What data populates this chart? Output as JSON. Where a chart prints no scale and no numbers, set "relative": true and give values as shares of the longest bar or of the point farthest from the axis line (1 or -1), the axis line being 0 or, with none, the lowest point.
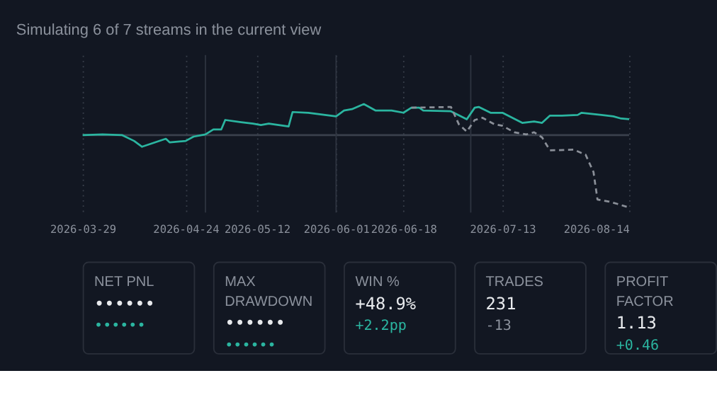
{
  "chart_data": [
    {
      "type": "line",
      "title": "Simulating 6 of 7 streams in the current view",
      "relative": true,
      "x": [
        "2026-03-29",
        "2026-04-03",
        "2026-04-08",
        "2026-04-11",
        "2026-04-13",
        "2026-04-19",
        "2026-04-20",
        "2026-04-24",
        "2026-04-26",
        "2026-04-29",
        "2026-05-01",
        "2026-05-03",
        "2026-05-04",
        "2026-05-08",
        "2026-05-11",
        "2026-05-13",
        "2026-05-15",
        "2026-05-20",
        "2026-05-21",
        "2026-05-25",
        "2026-06-01",
        "2026-06-03",
        "2026-06-05",
        "2026-06-08",
        "2026-06-11",
        "2026-06-15",
        "2026-06-18",
        "2026-06-20",
        "2026-06-22",
        "2026-06-23",
        "2026-06-30",
        "2026-07-04",
        "2026-07-06",
        "2026-07-07",
        "2026-07-10",
        "2026-07-13",
        "2026-07-18",
        "2026-07-21",
        "2026-07-23",
        "2026-07-25",
        "2026-07-28",
        "2026-08-01",
        "2026-08-02",
        "2026-08-07",
        "2026-08-10",
        "2026-08-12",
        "2026-08-14"
      ],
      "series": [
        {
          "color": "#2bb5a0",
          "line_style": "solid",
          "values": [
            0,
            0.01,
            0,
            -0.08,
            -0.16,
            -0.05,
            -0.1,
            -0.08,
            -0.02,
            0.01,
            0.08,
            0.08,
            0.21,
            0.18,
            0.16,
            0.14,
            0.16,
            0.12,
            0.32,
            0.31,
            0.26,
            0.34,
            0.36,
            0.43,
            0.34,
            0.34,
            0.31,
            0.38,
            0.38,
            0.34,
            0.33,
            0.22,
            0.38,
            0.39,
            0.31,
            0.31,
            0.17,
            0.19,
            0.17,
            0.27,
            0.27,
            0.28,
            0.31,
            0.28,
            0.26,
            0.23,
            0.22
          ]
        },
        {
          "color": "#8a8f98",
          "line_style": "dashed",
          "x": [
            "2026-06-20",
            "2026-06-30",
            "2026-07-02",
            "2026-07-04",
            "2026-07-06",
            "2026-07-08",
            "2026-07-11",
            "2026-07-13",
            "2026-07-16",
            "2026-07-19",
            "2026-07-21",
            "2026-07-23",
            "2026-07-24",
            "2026-07-25",
            "2026-07-31",
            "2026-08-03",
            "2026-08-05",
            "2026-08-06",
            "2026-08-09",
            "2026-08-11",
            "2026-08-14"
          ],
          "values": [
            0.38,
            0.39,
            0.15,
            0.05,
            0.21,
            0.24,
            0.15,
            0.13,
            0.04,
            0.01,
            0.04,
            -0.03,
            -0.12,
            -0.21,
            -0.2,
            -0.27,
            -0.51,
            -0.89,
            -0.92,
            -0.95,
            -1
          ]
        }
      ],
      "xlim": [
        "2026-03-29",
        "2026-08-14"
      ],
      "xticks": [
        "2026-03-29",
        "2026-04-24",
        "2026-05-12",
        "2026-06-01",
        "2026-06-18",
        "2026-07-13",
        "2026-08-14"
      ],
      "grid": "x",
      "ref_lines": [
        {
          "axis": "x",
          "value": "2026-04-29",
          "color": "#2e3440"
        },
        {
          "axis": "x",
          "value": "2026-06-01",
          "color": "#2e3440"
        },
        {
          "axis": "x",
          "value": "2026-07-05",
          "color": "#2e3440"
        }
      ]
    },
    {
      "type": "other",
      "title": "NET PNL",
      "annotations": [
        "••••••",
        "••••••"
      ],
      "colors": [
        "#e8eaed",
        "#2bb5a0"
      ]
    },
    {
      "type": "other",
      "title": "MAX DRAWDOWN",
      "annotations": [
        "••••••",
        "••••••"
      ],
      "colors": [
        "#e8eaed",
        "#2bb5a0"
      ]
    },
    {
      "type": "other",
      "title": "WIN %",
      "annotations": [
        "+48.9%",
        "+2.2pp"
      ],
      "colors": [
        "#e8eaed",
        "#2bb5a0"
      ]
    },
    {
      "type": "other",
      "title": "TRADES",
      "annotations": [
        "231",
        "-13"
      ],
      "colors": [
        "#e8eaed",
        "#8b919c"
      ]
    },
    {
      "type": "other",
      "title": "PROFIT FACTOR",
      "annotations": [
        "1.13",
        "+0.46"
      ],
      "colors": [
        "#e8eaed",
        "#2bb5a0"
      ]
    }
  ]
}
